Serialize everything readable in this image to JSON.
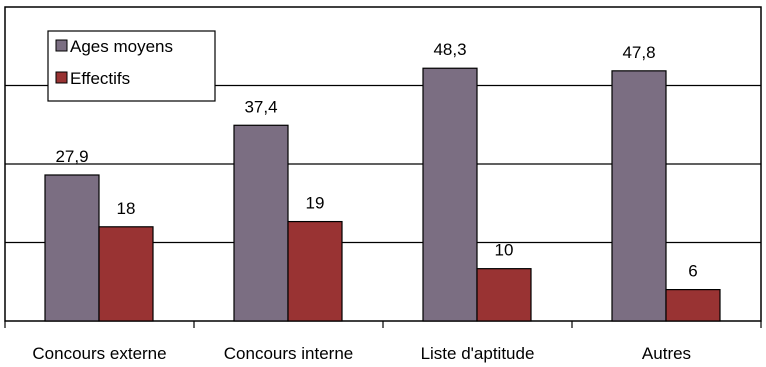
{
  "chart_data": {
    "type": "bar",
    "categories": [
      "Concours externe",
      "Concours interne",
      "Liste d'aptitude",
      "Autres"
    ],
    "series": [
      {
        "name": "Ages moyens",
        "values": [
          27.9,
          37.4,
          48.3,
          47.8
        ],
        "labels": [
          "27,9",
          "37,4",
          "48,3",
          "47,8"
        ],
        "color": "#7b6e82"
      },
      {
        "name": "Effectifs",
        "values": [
          18,
          19,
          10,
          6
        ],
        "labels": [
          "18",
          "19",
          "10",
          "6"
        ],
        "color": "#993333"
      }
    ],
    "ylim": [
      0,
      60
    ],
    "grid": true,
    "legend": "top-left"
  }
}
